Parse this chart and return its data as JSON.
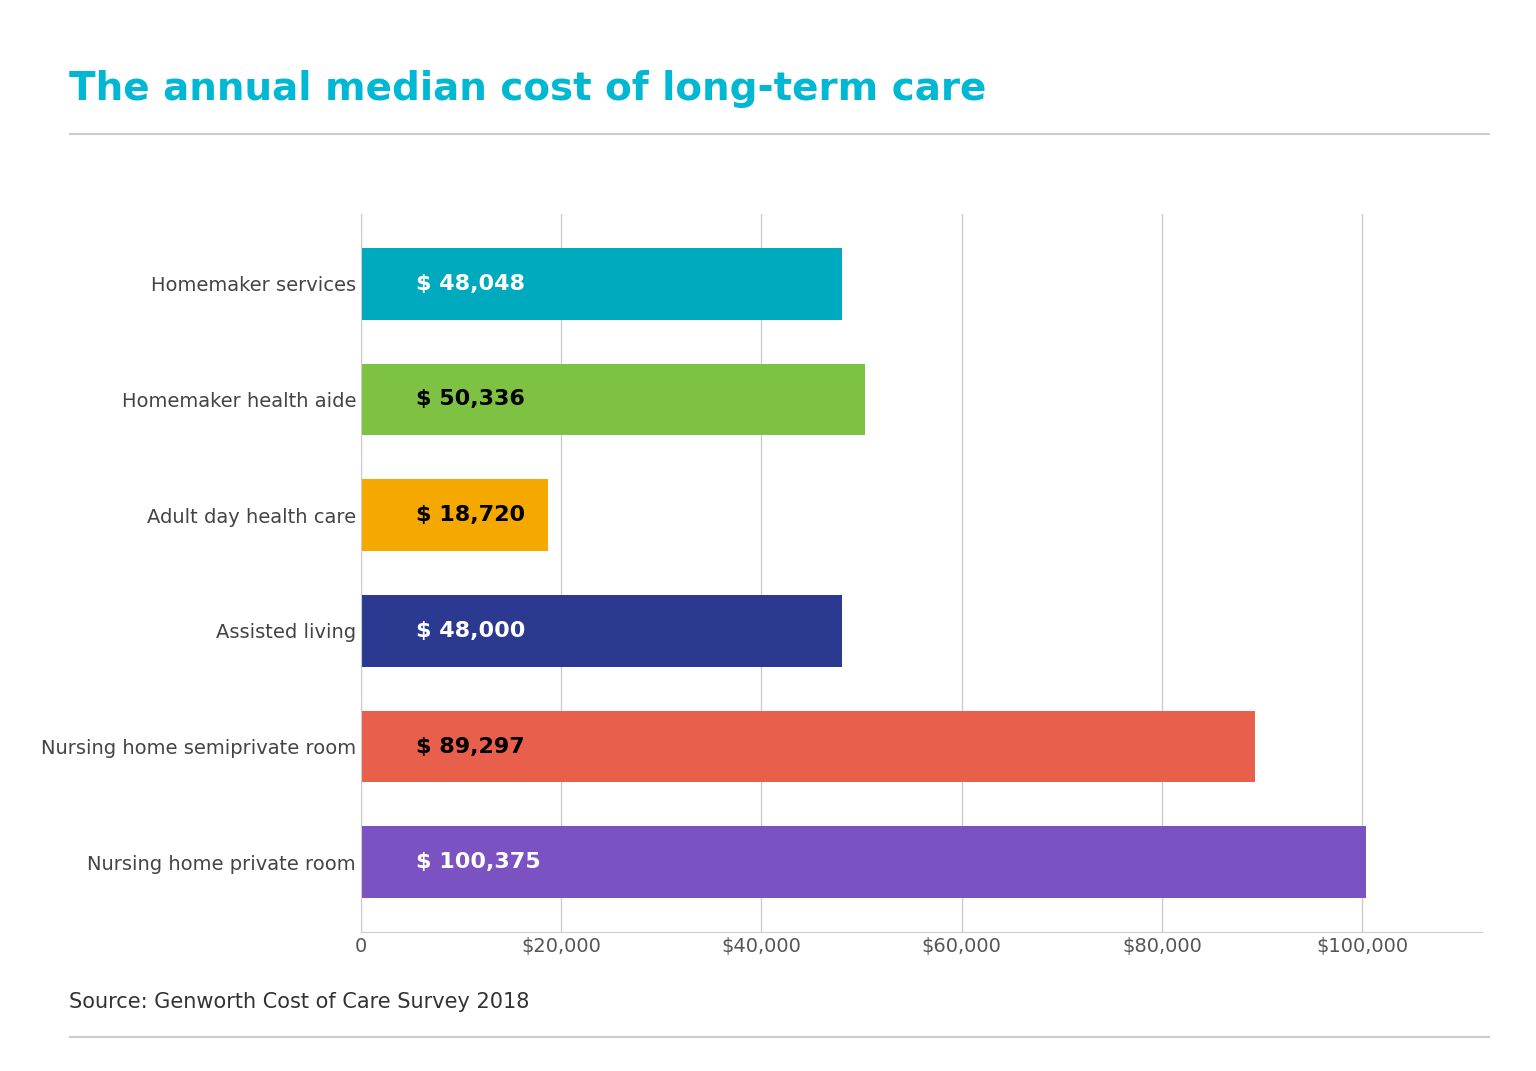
{
  "title": "The annual median cost of long-term care",
  "title_color": "#00b8d4",
  "source_text": "Source: Genworth Cost of Care Survey 2018",
  "categories": [
    "Nursing home private room",
    "Nursing home semiprivate room",
    "Assisted living",
    "Adult day health care",
    "Homemaker health aide",
    "Homemaker services"
  ],
  "values": [
    100375,
    89297,
    48000,
    18720,
    50336,
    48048
  ],
  "bar_colors": [
    "#7B52C1",
    "#E8604C",
    "#2B3990",
    "#F5A800",
    "#7DC242",
    "#00AABE"
  ],
  "label_texts": [
    "$ 100,375",
    "$ 89,297",
    "$ 48,000",
    "$ 18,720",
    "$ 50,336",
    "$ 48,048"
  ],
  "label_colors": [
    "#ffffff",
    "#000000",
    "#ffffff",
    "#000000",
    "#000000",
    "#ffffff"
  ],
  "xlim_max": 112000,
  "xtick_values": [
    0,
    20000,
    40000,
    60000,
    80000,
    100000
  ],
  "xtick_labels": [
    "0",
    "$20,000",
    "$40,000",
    "$60,000",
    "$80,000",
    "$100,000"
  ],
  "background_color": "#ffffff",
  "bar_height": 0.62,
  "title_fontsize": 28,
  "label_fontsize": 16,
  "tick_fontsize": 14,
  "ylabel_fontsize": 14,
  "source_fontsize": 15
}
